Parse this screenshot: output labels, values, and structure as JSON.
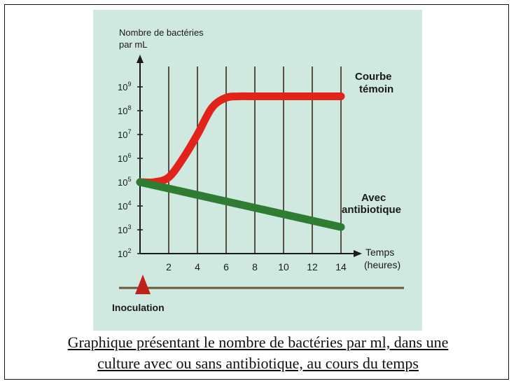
{
  "chart_data": {
    "type": "line",
    "ylabel_line1": "Nombre de bactéries",
    "ylabel_line2": "par mL",
    "xlabel_line1": "Temps",
    "xlabel_line2": "(heures)",
    "x_ticks": [
      2,
      4,
      6,
      8,
      10,
      12,
      14
    ],
    "y_ticks": [
      {
        "base": "10",
        "exp": "2"
      },
      {
        "base": "10",
        "exp": "3"
      },
      {
        "base": "10",
        "exp": "4"
      },
      {
        "base": "10",
        "exp": "5"
      },
      {
        "base": "10",
        "exp": "6"
      },
      {
        "base": "10",
        "exp": "7"
      },
      {
        "base": "10",
        "exp": "8"
      },
      {
        "base": "10",
        "exp": "9"
      }
    ],
    "y_scale": "log10",
    "xlim": [
      0,
      15
    ],
    "ylim_exponent": [
      2,
      9.3
    ],
    "grid": "vertical",
    "series": [
      {
        "name_line1": "Courbe",
        "name_line2": "témoin",
        "color": "#e2231a",
        "points": [
          [
            0,
            100000.0
          ],
          [
            1,
            100000.0
          ],
          [
            2,
            160000.0
          ],
          [
            3,
            1000000.0
          ],
          [
            4,
            10000000.0
          ],
          [
            5,
            130000000.0
          ],
          [
            6,
            350000000.0
          ],
          [
            7,
            400000000.0
          ],
          [
            8,
            400000000.0
          ],
          [
            10,
            400000000.0
          ],
          [
            12,
            400000000.0
          ],
          [
            14,
            400000000.0
          ]
        ]
      },
      {
        "name_line1": "Avec",
        "name_line2": "antibiotique",
        "color": "#2e7d32",
        "points": [
          [
            0,
            100000.0
          ],
          [
            14,
            1300.0
          ]
        ]
      }
    ],
    "annotation": "Inoculation"
  },
  "caption_line1": "Graphique présentant le nombre de bactéries par ml, dans une",
  "caption_line2": "culture avec ou sans antibiotique, au cours du temps"
}
